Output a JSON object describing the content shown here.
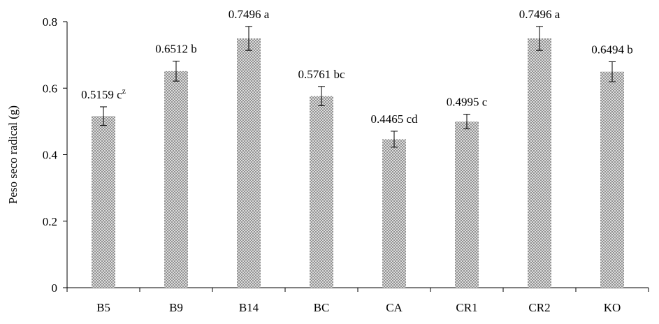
{
  "chart_data": {
    "type": "bar",
    "title": "",
    "xlabel": "",
    "ylabel": "Peso seco radical  (g)",
    "ylim": [
      0,
      0.8
    ],
    "yticks": [
      "0",
      "0.2",
      "0.4",
      "0.6",
      "0.8"
    ],
    "ytick_values": [
      0,
      0.2,
      0.4,
      0.6,
      0.8
    ],
    "grid": false,
    "legend": "none",
    "categories": [
      "B5",
      "B9",
      "B14",
      "BC",
      "CA",
      "CR1",
      "CR2",
      "KO"
    ],
    "values": [
      0.5159,
      0.6512,
      0.7496,
      0.5761,
      0.4465,
      0.4995,
      0.7496,
      0.6494
    ],
    "error": [
      0.028,
      0.03,
      0.036,
      0.029,
      0.024,
      0.022,
      0.036,
      0.03
    ],
    "labels": [
      "0.5159 c",
      "0.6512 b",
      "0.7496 a",
      "0.5761 bc",
      "0.4465 cd",
      "0.4995 c",
      "0.7496 a",
      "0.6494 b"
    ],
    "label_superscripts": [
      "z",
      "",
      "",
      "",
      "",
      "",
      "",
      ""
    ],
    "bar_pattern": "crosshatch",
    "colors": {
      "bar_fill": "#9a9a9a",
      "bar_background": "#ffffff",
      "axis": "#000000"
    }
  }
}
